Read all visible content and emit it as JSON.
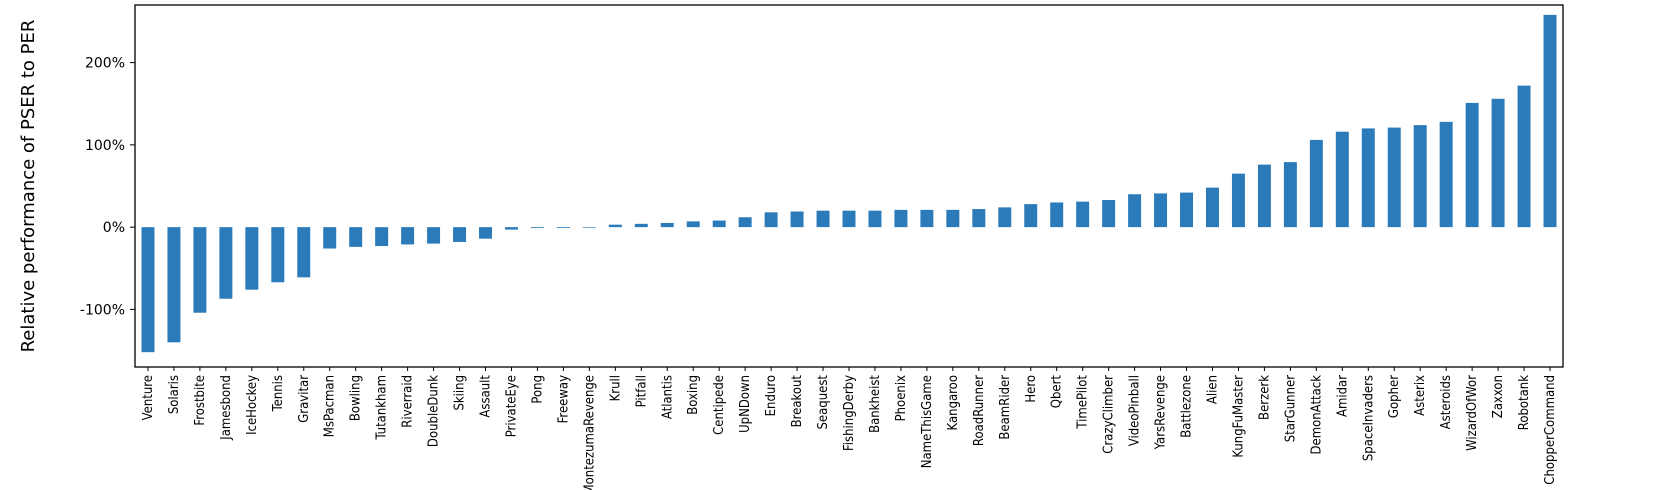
{
  "chart_data": {
    "type": "bar",
    "title": "",
    "xlabel": "",
    "ylabel": "Relative performance of PSER to PER",
    "ylim": [
      -170,
      270
    ],
    "yticks": [
      -100,
      0,
      100,
      200
    ],
    "ytick_labels": [
      "-100%",
      "0%",
      "100%",
      "200%"
    ],
    "grid": false,
    "legend": "none",
    "bar_color": "#2b7bba",
    "categories": [
      "Venture",
      "Solaris",
      "Frostbite",
      "Jamesbond",
      "IceHockey",
      "Tennis",
      "Gravitar",
      "MsPacman",
      "Bowling",
      "Tutankham",
      "Riverraid",
      "DoubleDunk",
      "Skiing",
      "Assault",
      "PrivateEye",
      "Pong",
      "Freeway",
      "MontezumaRevenge",
      "Krull",
      "Pitfall",
      "Atlantis",
      "Boxing",
      "Centipede",
      "UpNDown",
      "Enduro",
      "Breakout",
      "Seaquest",
      "FishingDerby",
      "Bankheist",
      "Phoenix",
      "NameThisGame",
      "Kangaroo",
      "RoadRunner",
      "BeamRider",
      "Hero",
      "Qbert",
      "TimePilot",
      "CrazyClimber",
      "VideoPinball",
      "YarsRevenge",
      "Battlezone",
      "Alien",
      "KungFuMaster",
      "Berzerk",
      "StarGunner",
      "DemonAttack",
      "Amidar",
      "SpaceInvaders",
      "Gopher",
      "Asterix",
      "Asteroids",
      "WizardOfWor",
      "Zaxxon",
      "Robotank",
      "ChopperCommand"
    ],
    "values": [
      -152,
      -140,
      -104,
      -87,
      -76,
      -67,
      -61,
      -26,
      -24,
      -23,
      -21,
      -20,
      -18,
      -14,
      -3,
      -1,
      -1,
      -0.5,
      3,
      4,
      5,
      7,
      8,
      12,
      18,
      19,
      20,
      20,
      20,
      21,
      21,
      21,
      22,
      24,
      28,
      30,
      31,
      33,
      40,
      41,
      42,
      48,
      65,
      76,
      79,
      106,
      116,
      120,
      121,
      124,
      128,
      151,
      156,
      172,
      258
    ]
  }
}
